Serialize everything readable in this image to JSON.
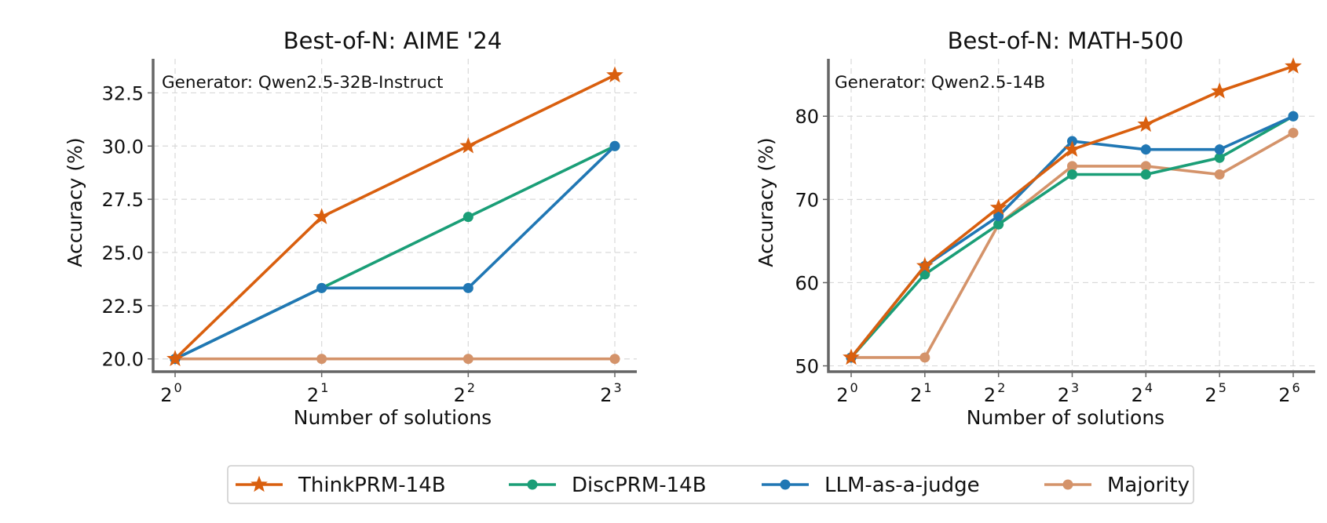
{
  "colors": {
    "ThinkPRM-14B": "#d95f0e",
    "DiscPRM-14B": "#1a9e77",
    "LLM-as-a-judge": "#2077b4",
    "Majority": "#d4936a"
  },
  "legend": {
    "placement": "bottom-center",
    "items": [
      {
        "name": "ThinkPRM-14B",
        "marker": "star"
      },
      {
        "name": "DiscPRM-14B",
        "marker": "circle"
      },
      {
        "name": "LLM-as-a-judge",
        "marker": "circle"
      },
      {
        "name": "Majority",
        "marker": "circle"
      }
    ]
  },
  "chart_data": [
    {
      "type": "line",
      "title": "Best-of-N: AIME '24",
      "annotation": "Generator: Qwen2.5-32B-Instruct",
      "xlabel": "Number of solutions",
      "ylabel": "Accuracy (%)",
      "x_scale": "log2",
      "x": [
        1,
        2,
        4,
        8
      ],
      "x_tick_labels": [
        [
          "2",
          "0"
        ],
        [
          "2",
          "1"
        ],
        [
          "2",
          "2"
        ],
        [
          "2",
          "3"
        ]
      ],
      "ylim": [
        19.4,
        34.1
      ],
      "y_ticks": [
        20.0,
        22.5,
        25.0,
        27.5,
        30.0,
        32.5
      ],
      "y_tick_labels": [
        "20.0",
        "22.5",
        "25.0",
        "27.5",
        "30.0",
        "32.5"
      ],
      "grid": true,
      "series": [
        {
          "name": "Majority",
          "values": [
            20.0,
            20.0,
            20.0,
            20.0
          ]
        },
        {
          "name": "DiscPRM-14B",
          "values": [
            20.0,
            23.33,
            26.67,
            30.0
          ]
        },
        {
          "name": "LLM-as-a-judge",
          "values": [
            20.0,
            23.33,
            23.33,
            30.0
          ]
        },
        {
          "name": "ThinkPRM-14B",
          "values": [
            20.0,
            26.67,
            30.0,
            33.33
          ]
        }
      ]
    },
    {
      "type": "line",
      "title": "Best-of-N: MATH-500",
      "annotation": "Generator: Qwen2.5-14B",
      "xlabel": "Number of solutions",
      "ylabel": "Accuracy (%)",
      "x_scale": "log2",
      "x": [
        1,
        2,
        4,
        8,
        16,
        32,
        64
      ],
      "x_tick_labels": [
        [
          "2",
          "0"
        ],
        [
          "2",
          "1"
        ],
        [
          "2",
          "2"
        ],
        [
          "2",
          "3"
        ],
        [
          "2",
          "4"
        ],
        [
          "2",
          "5"
        ],
        [
          "2",
          "6"
        ]
      ],
      "ylim": [
        49.3,
        86.9
      ],
      "y_ticks": [
        50,
        60,
        70,
        80
      ],
      "y_tick_labels": [
        "50",
        "60",
        "70",
        "80"
      ],
      "grid": true,
      "series": [
        {
          "name": "Majority",
          "values": [
            51,
            51,
            67,
            74,
            74,
            73,
            78
          ]
        },
        {
          "name": "DiscPRM-14B",
          "values": [
            51,
            61,
            67,
            73,
            73,
            75,
            80
          ]
        },
        {
          "name": "LLM-as-a-judge",
          "values": [
            51,
            62,
            68,
            77,
            76,
            76,
            80
          ]
        },
        {
          "name": "ThinkPRM-14B",
          "values": [
            51,
            62,
            69,
            76,
            79,
            83,
            86
          ]
        }
      ]
    }
  ]
}
